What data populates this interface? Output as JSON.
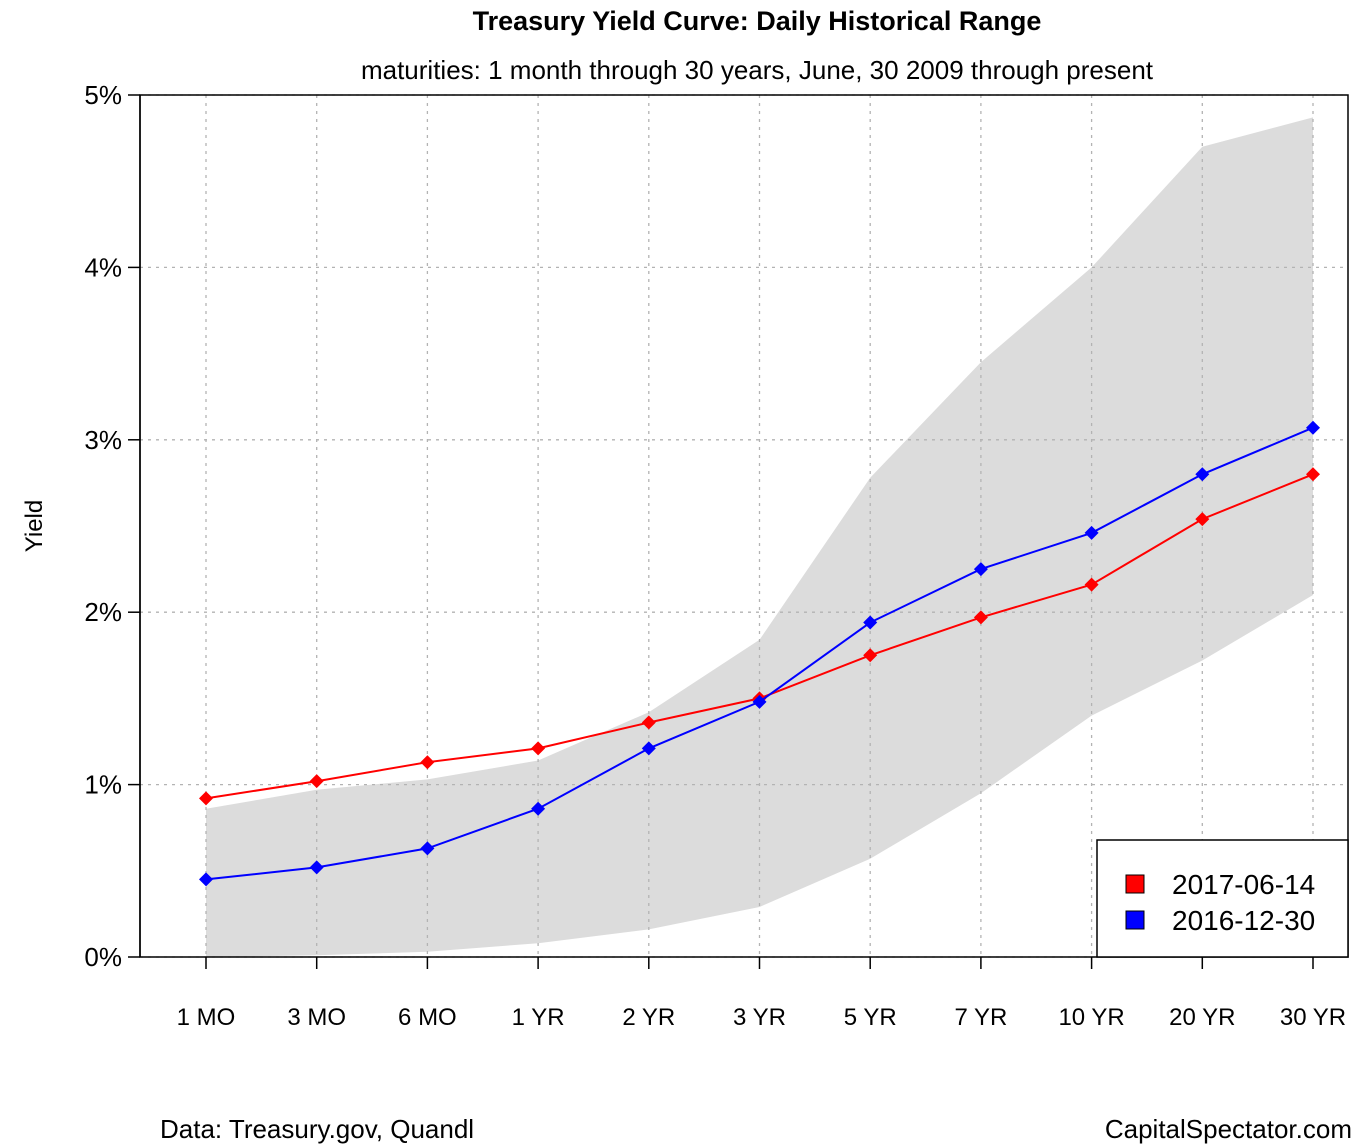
{
  "chart_data": {
    "type": "line",
    "title": "Treasury Yield Curve: Daily Historical Range",
    "subtitle": "maturities: 1 month through 30 years, June, 30 2009 through present",
    "ylabel": "Yield",
    "xlabel": "",
    "categories": [
      "1 MO",
      "3 MO",
      "6 MO",
      "1 YR",
      "2 YR",
      "3 YR",
      "5 YR",
      "7 YR",
      "10 YR",
      "20 YR",
      "30 YR"
    ],
    "ylim": [
      0,
      5
    ],
    "yticks": [
      0,
      1,
      2,
      3,
      4,
      5
    ],
    "ytick_labels": [
      "0%",
      "1%",
      "2%",
      "3%",
      "4%",
      "5%"
    ],
    "grid": true,
    "legend_position": "bottom-right",
    "historical_range": {
      "color": "#dcdcdc",
      "low": [
        0.0,
        0.01,
        0.03,
        0.08,
        0.16,
        0.29,
        0.57,
        0.95,
        1.4,
        1.72,
        2.1
      ],
      "high": [
        0.86,
        0.97,
        1.03,
        1.14,
        1.42,
        1.84,
        2.78,
        3.45,
        4.0,
        4.7,
        4.87
      ]
    },
    "series": [
      {
        "name": "2017-06-14",
        "color": "#ff0000",
        "values": [
          0.92,
          1.02,
          1.13,
          1.21,
          1.36,
          1.5,
          1.75,
          1.97,
          2.16,
          2.54,
          2.8
        ]
      },
      {
        "name": "2016-12-30",
        "color": "#0000ff",
        "values": [
          0.45,
          0.52,
          0.63,
          0.86,
          1.21,
          1.48,
          1.94,
          2.25,
          2.46,
          2.8,
          3.07
        ]
      }
    ]
  },
  "footer": {
    "source": "Data: Treasury.gov, Quandl",
    "brand": "CapitalSpectator.com"
  }
}
